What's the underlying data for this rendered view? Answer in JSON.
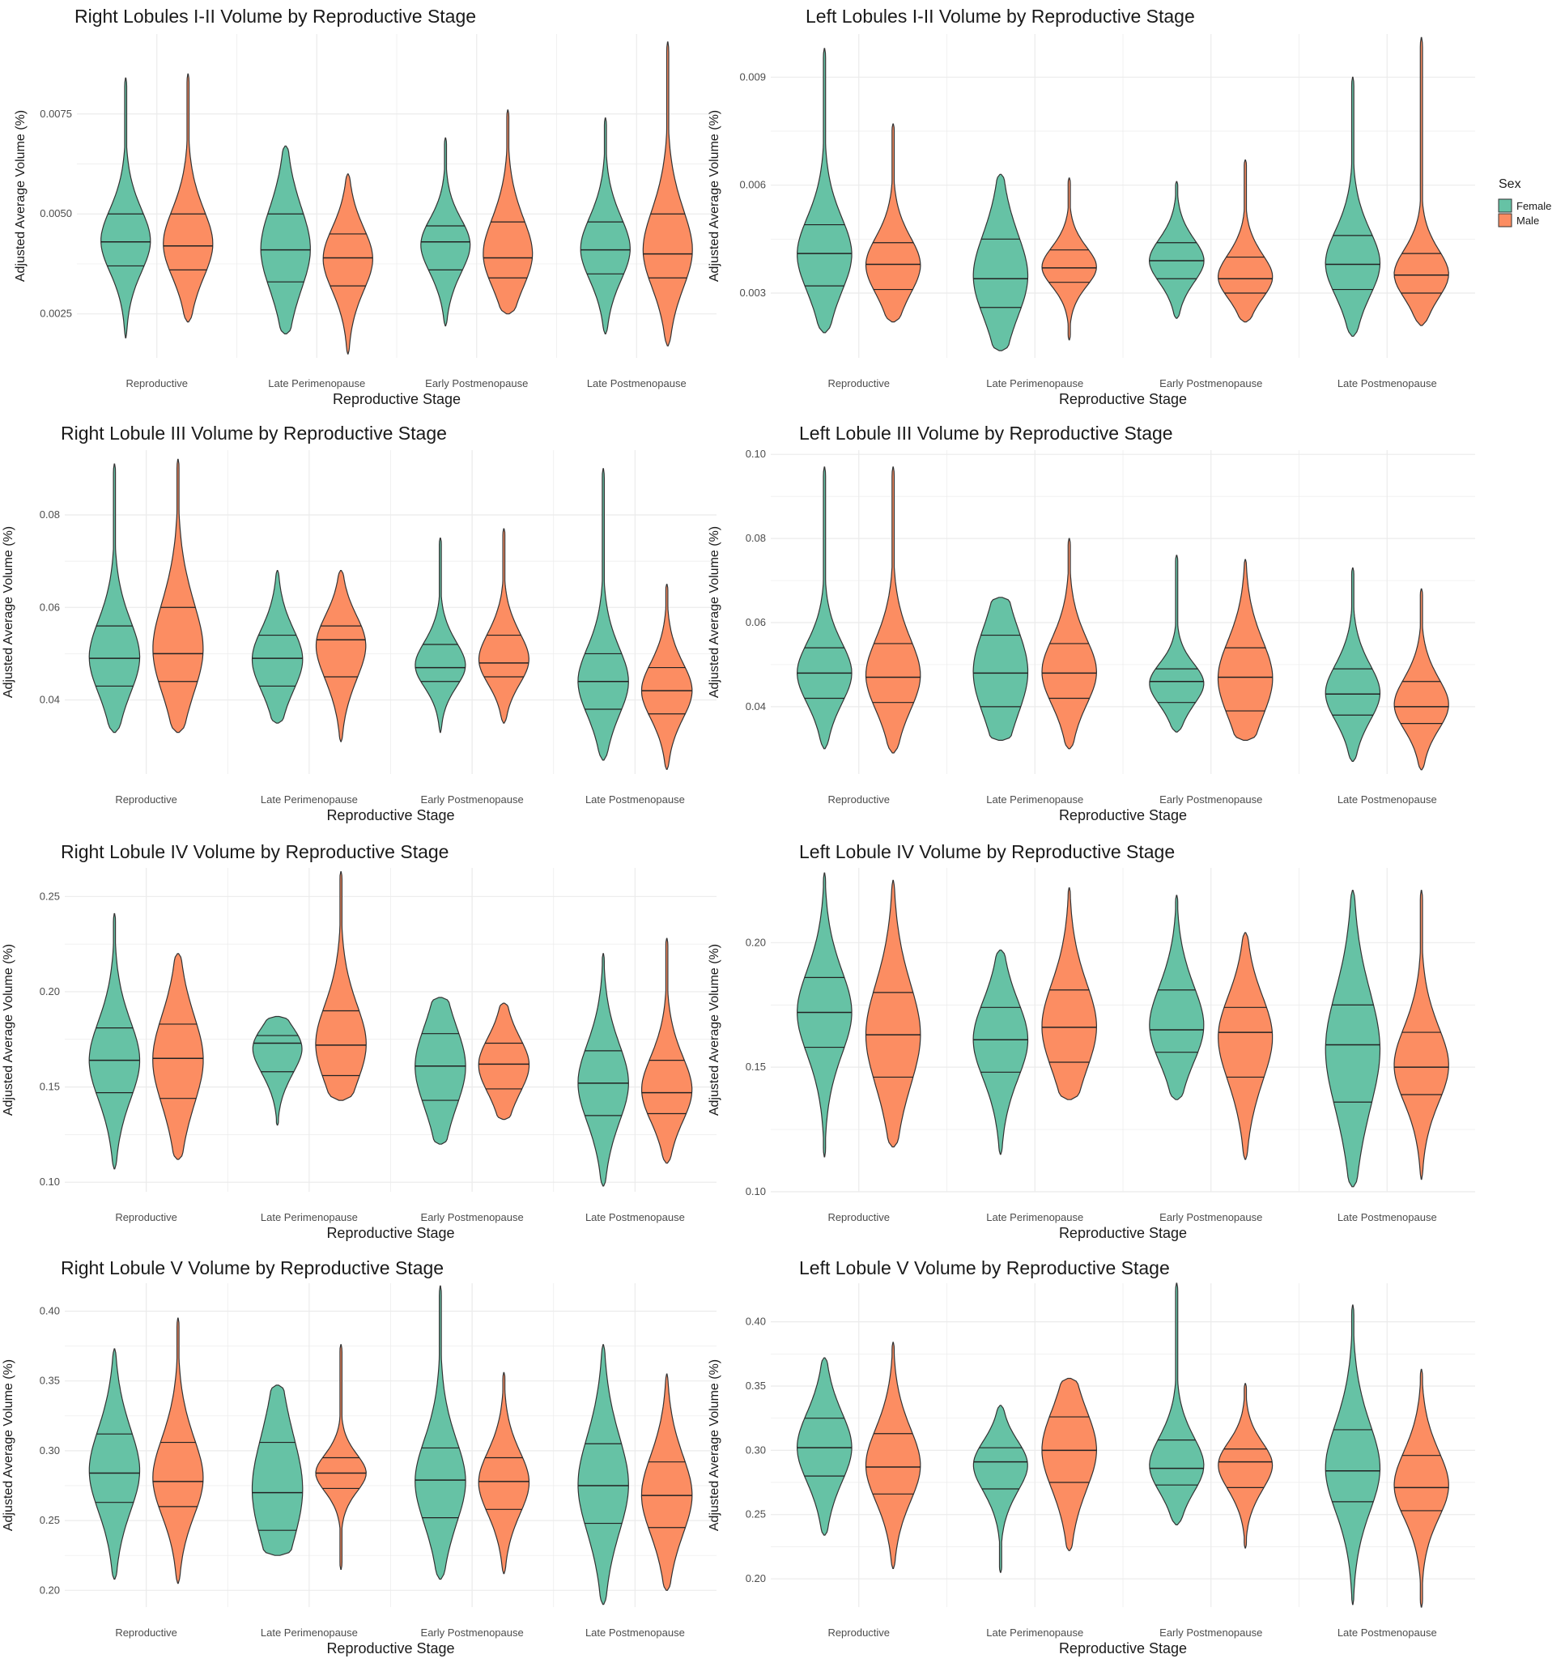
{
  "colors": {
    "female": "#66c2a5",
    "male": "#fc8d62",
    "outline": "#333333",
    "grid": "#ebebeb"
  },
  "legend": {
    "title": "Sex",
    "items": [
      "Female",
      "Male"
    ],
    "placement": "right"
  },
  "chart_data": [
    {
      "type": "violin",
      "title": "Right Lobules I-II Volume by Reproductive Stage",
      "xlabel": "Reproductive Stage",
      "ylabel": "Adjusted Average Volume (%)",
      "categories": [
        "Reproductive",
        "Late Perimenopause",
        "Early Postmenopause",
        "Late Postmenopause"
      ],
      "ylim": [
        0.0014,
        0.0095
      ],
      "yticks": [
        0.0025,
        0.005,
        0.0075
      ],
      "ytick_labels": [
        "0.0025",
        "0.0050",
        "0.0075"
      ],
      "grid": true,
      "series": [
        {
          "name": "Female",
          "groups": [
            {
              "min": 0.0019,
              "max": 0.0084,
              "q1": 0.0037,
              "median": 0.0043,
              "q3": 0.005
            },
            {
              "min": 0.002,
              "max": 0.0067,
              "q1": 0.0033,
              "median": 0.0041,
              "q3": 0.005
            },
            {
              "min": 0.0022,
              "max": 0.0069,
              "q1": 0.0036,
              "median": 0.0043,
              "q3": 0.0047
            },
            {
              "min": 0.002,
              "max": 0.0074,
              "q1": 0.0035,
              "median": 0.0041,
              "q3": 0.0048
            }
          ]
        },
        {
          "name": "Male",
          "groups": [
            {
              "min": 0.0023,
              "max": 0.0085,
              "q1": 0.0036,
              "median": 0.0042,
              "q3": 0.005
            },
            {
              "min": 0.0015,
              "max": 0.006,
              "q1": 0.0032,
              "median": 0.0039,
              "q3": 0.0045
            },
            {
              "min": 0.0025,
              "max": 0.0076,
              "q1": 0.0034,
              "median": 0.0039,
              "q3": 0.0048
            },
            {
              "min": 0.0017,
              "max": 0.0093,
              "q1": 0.0034,
              "median": 0.004,
              "q3": 0.005
            }
          ]
        }
      ]
    },
    {
      "type": "violin",
      "title": "Left Lobules I-II Volume by Reproductive Stage",
      "xlabel": "Reproductive Stage",
      "ylabel": "Adjusted Average Volume (%)",
      "categories": [
        "Reproductive",
        "Late Perimenopause",
        "Early Postmenopause",
        "Late Postmenopause"
      ],
      "ylim": [
        0.0012,
        0.0102
      ],
      "yticks": [
        0.003,
        0.006,
        0.009
      ],
      "ytick_labels": [
        "0.003",
        "0.006",
        "0.009"
      ],
      "grid": true,
      "series": [
        {
          "name": "Female",
          "groups": [
            {
              "min": 0.0019,
              "max": 0.0098,
              "q1": 0.0032,
              "median": 0.0041,
              "q3": 0.0049
            },
            {
              "min": 0.0014,
              "max": 0.0063,
              "q1": 0.0026,
              "median": 0.0034,
              "q3": 0.0045
            },
            {
              "min": 0.0023,
              "max": 0.0061,
              "q1": 0.0034,
              "median": 0.0039,
              "q3": 0.0044
            },
            {
              "min": 0.0018,
              "max": 0.009,
              "q1": 0.0031,
              "median": 0.0038,
              "q3": 0.0046
            }
          ]
        },
        {
          "name": "Male",
          "groups": [
            {
              "min": 0.0022,
              "max": 0.0077,
              "q1": 0.0031,
              "median": 0.0038,
              "q3": 0.0044
            },
            {
              "min": 0.0017,
              "max": 0.0062,
              "q1": 0.0033,
              "median": 0.0037,
              "q3": 0.0042
            },
            {
              "min": 0.0022,
              "max": 0.0067,
              "q1": 0.003,
              "median": 0.0034,
              "q3": 0.004
            },
            {
              "min": 0.0021,
              "max": 0.0101,
              "q1": 0.003,
              "median": 0.0035,
              "q3": 0.0041
            }
          ]
        }
      ]
    },
    {
      "type": "violin",
      "title": "Right Lobule III Volume by Reproductive Stage",
      "xlabel": "Reproductive Stage",
      "ylabel": "Adjusted Average Volume (%)",
      "categories": [
        "Reproductive",
        "Late Perimenopause",
        "Early Postmenopause",
        "Late Postmenopause"
      ],
      "ylim": [
        0.024,
        0.094
      ],
      "yticks": [
        0.04,
        0.06,
        0.08
      ],
      "ytick_labels": [
        "0.04",
        "0.06",
        "0.08"
      ],
      "grid": true,
      "series": [
        {
          "name": "Female",
          "groups": [
            {
              "min": 0.033,
              "max": 0.091,
              "q1": 0.043,
              "median": 0.049,
              "q3": 0.056
            },
            {
              "min": 0.035,
              "max": 0.068,
              "q1": 0.043,
              "median": 0.049,
              "q3": 0.054
            },
            {
              "min": 0.033,
              "max": 0.075,
              "q1": 0.044,
              "median": 0.047,
              "q3": 0.052
            },
            {
              "min": 0.027,
              "max": 0.09,
              "q1": 0.038,
              "median": 0.044,
              "q3": 0.05
            }
          ]
        },
        {
          "name": "Male",
          "groups": [
            {
              "min": 0.033,
              "max": 0.092,
              "q1": 0.044,
              "median": 0.05,
              "q3": 0.06
            },
            {
              "min": 0.031,
              "max": 0.068,
              "q1": 0.045,
              "median": 0.053,
              "q3": 0.056
            },
            {
              "min": 0.035,
              "max": 0.077,
              "q1": 0.045,
              "median": 0.048,
              "q3": 0.054
            },
            {
              "min": 0.025,
              "max": 0.065,
              "q1": 0.037,
              "median": 0.042,
              "q3": 0.047
            }
          ]
        }
      ]
    },
    {
      "type": "violin",
      "title": "Left Lobule III Volume by Reproductive Stage",
      "xlabel": "Reproductive Stage",
      "ylabel": "Adjusted Average Volume (%)",
      "categories": [
        "Reproductive",
        "Late Perimenopause",
        "Early Postmenopause",
        "Late Postmenopause"
      ],
      "ylim": [
        0.024,
        0.101
      ],
      "yticks": [
        0.04,
        0.06,
        0.08,
        0.1
      ],
      "ytick_labels": [
        "0.04",
        "0.06",
        "0.08",
        "0.10"
      ],
      "grid": true,
      "series": [
        {
          "name": "Female",
          "groups": [
            {
              "min": 0.03,
              "max": 0.097,
              "q1": 0.042,
              "median": 0.048,
              "q3": 0.054
            },
            {
              "min": 0.032,
              "max": 0.066,
              "q1": 0.04,
              "median": 0.048,
              "q3": 0.057
            },
            {
              "min": 0.034,
              "max": 0.076,
              "q1": 0.041,
              "median": 0.046,
              "q3": 0.049
            },
            {
              "min": 0.027,
              "max": 0.073,
              "q1": 0.038,
              "median": 0.043,
              "q3": 0.049
            }
          ]
        },
        {
          "name": "Male",
          "groups": [
            {
              "min": 0.029,
              "max": 0.097,
              "q1": 0.041,
              "median": 0.047,
              "q3": 0.055
            },
            {
              "min": 0.03,
              "max": 0.08,
              "q1": 0.042,
              "median": 0.048,
              "q3": 0.055
            },
            {
              "min": 0.032,
              "max": 0.075,
              "q1": 0.039,
              "median": 0.047,
              "q3": 0.054
            },
            {
              "min": 0.025,
              "max": 0.068,
              "q1": 0.036,
              "median": 0.04,
              "q3": 0.046
            }
          ]
        }
      ]
    },
    {
      "type": "violin",
      "title": "Right Lobule IV Volume by Reproductive Stage",
      "xlabel": "Reproductive Stage",
      "ylabel": "Adjusted Average Volume (%)",
      "categories": [
        "Reproductive",
        "Late Perimenopause",
        "Early Postmenopause",
        "Late Postmenopause"
      ],
      "ylim": [
        0.095,
        0.265
      ],
      "yticks": [
        0.1,
        0.15,
        0.2,
        0.25
      ],
      "ytick_labels": [
        "0.10",
        "0.15",
        "0.20",
        "0.25"
      ],
      "grid": true,
      "series": [
        {
          "name": "Female",
          "groups": [
            {
              "min": 0.107,
              "max": 0.241,
              "q1": 0.147,
              "median": 0.164,
              "q3": 0.181
            },
            {
              "min": 0.13,
              "max": 0.187,
              "q1": 0.158,
              "median": 0.173,
              "q3": 0.177
            },
            {
              "min": 0.12,
              "max": 0.197,
              "q1": 0.143,
              "median": 0.161,
              "q3": 0.178
            },
            {
              "min": 0.098,
              "max": 0.22,
              "q1": 0.135,
              "median": 0.152,
              "q3": 0.169
            }
          ]
        },
        {
          "name": "Male",
          "groups": [
            {
              "min": 0.112,
              "max": 0.22,
              "q1": 0.144,
              "median": 0.165,
              "q3": 0.183
            },
            {
              "min": 0.143,
              "max": 0.263,
              "q1": 0.156,
              "median": 0.172,
              "q3": 0.19
            },
            {
              "min": 0.133,
              "max": 0.194,
              "q1": 0.149,
              "median": 0.162,
              "q3": 0.173
            },
            {
              "min": 0.11,
              "max": 0.228,
              "q1": 0.136,
              "median": 0.147,
              "q3": 0.164
            }
          ]
        }
      ]
    },
    {
      "type": "violin",
      "title": "Left Lobule IV Volume by Reproductive Stage",
      "xlabel": "Reproductive Stage",
      "ylabel": "Adjusted Average Volume (%)",
      "categories": [
        "Reproductive",
        "Late Perimenopause",
        "Early Postmenopause",
        "Late Postmenopause"
      ],
      "ylim": [
        0.1,
        0.23
      ],
      "yticks": [
        0.1,
        0.15,
        0.2
      ],
      "ytick_labels": [
        "0.10",
        "0.15",
        "0.20"
      ],
      "grid": true,
      "series": [
        {
          "name": "Female",
          "groups": [
            {
              "min": 0.114,
              "max": 0.228,
              "q1": 0.158,
              "median": 0.172,
              "q3": 0.186
            },
            {
              "min": 0.115,
              "max": 0.197,
              "q1": 0.148,
              "median": 0.161,
              "q3": 0.174
            },
            {
              "min": 0.137,
              "max": 0.219,
              "q1": 0.156,
              "median": 0.165,
              "q3": 0.181
            },
            {
              "min": 0.102,
              "max": 0.221,
              "q1": 0.136,
              "median": 0.159,
              "q3": 0.175
            }
          ]
        },
        {
          "name": "Male",
          "groups": [
            {
              "min": 0.118,
              "max": 0.225,
              "q1": 0.146,
              "median": 0.163,
              "q3": 0.18
            },
            {
              "min": 0.137,
              "max": 0.222,
              "q1": 0.152,
              "median": 0.166,
              "q3": 0.181
            },
            {
              "min": 0.113,
              "max": 0.204,
              "q1": 0.146,
              "median": 0.164,
              "q3": 0.174
            },
            {
              "min": 0.105,
              "max": 0.221,
              "q1": 0.139,
              "median": 0.15,
              "q3": 0.164
            }
          ]
        }
      ]
    },
    {
      "type": "violin",
      "title": "Right Lobule V Volume by Reproductive Stage",
      "xlabel": "Reproductive Stage",
      "ylabel": "Adjusted Average Volume (%)",
      "categories": [
        "Reproductive",
        "Late Perimenopause",
        "Early Postmenopause",
        "Late Postmenopause"
      ],
      "ylim": [
        0.188,
        0.42
      ],
      "yticks": [
        0.2,
        0.25,
        0.3,
        0.35,
        0.4
      ],
      "ytick_labels": [
        "0.20",
        "0.25",
        "0.30",
        "0.35",
        "0.40"
      ],
      "grid": true,
      "series": [
        {
          "name": "Female",
          "groups": [
            {
              "min": 0.208,
              "max": 0.373,
              "q1": 0.263,
              "median": 0.284,
              "q3": 0.312
            },
            {
              "min": 0.225,
              "max": 0.347,
              "q1": 0.243,
              "median": 0.27,
              "q3": 0.306
            },
            {
              "min": 0.208,
              "max": 0.418,
              "q1": 0.252,
              "median": 0.279,
              "q3": 0.302
            },
            {
              "min": 0.19,
              "max": 0.376,
              "q1": 0.248,
              "median": 0.275,
              "q3": 0.305
            }
          ]
        },
        {
          "name": "Male",
          "groups": [
            {
              "min": 0.205,
              "max": 0.395,
              "q1": 0.26,
              "median": 0.278,
              "q3": 0.306
            },
            {
              "min": 0.215,
              "max": 0.376,
              "q1": 0.273,
              "median": 0.284,
              "q3": 0.295
            },
            {
              "min": 0.212,
              "max": 0.356,
              "q1": 0.258,
              "median": 0.278,
              "q3": 0.295
            },
            {
              "min": 0.2,
              "max": 0.355,
              "q1": 0.245,
              "median": 0.268,
              "q3": 0.292
            }
          ]
        }
      ]
    },
    {
      "type": "violin",
      "title": "Left Lobule V Volume by Reproductive Stage",
      "xlabel": "Reproductive Stage",
      "ylabel": "Adjusted Average Volume (%)",
      "categories": [
        "Reproductive",
        "Late Perimenopause",
        "Early Postmenopause",
        "Late Postmenopause"
      ],
      "ylim": [
        0.178,
        0.43
      ],
      "yticks": [
        0.2,
        0.25,
        0.3,
        0.35,
        0.4
      ],
      "ytick_labels": [
        "0.20",
        "0.25",
        "0.30",
        "0.35",
        "0.40"
      ],
      "grid": true,
      "series": [
        {
          "name": "Female",
          "groups": [
            {
              "min": 0.234,
              "max": 0.372,
              "q1": 0.28,
              "median": 0.302,
              "q3": 0.325
            },
            {
              "min": 0.205,
              "max": 0.335,
              "q1": 0.27,
              "median": 0.291,
              "q3": 0.302
            },
            {
              "min": 0.242,
              "max": 0.43,
              "q1": 0.273,
              "median": 0.286,
              "q3": 0.308
            },
            {
              "min": 0.18,
              "max": 0.413,
              "q1": 0.26,
              "median": 0.284,
              "q3": 0.316
            }
          ]
        },
        {
          "name": "Male",
          "groups": [
            {
              "min": 0.208,
              "max": 0.384,
              "q1": 0.266,
              "median": 0.287,
              "q3": 0.313
            },
            {
              "min": 0.222,
              "max": 0.356,
              "q1": 0.275,
              "median": 0.3,
              "q3": 0.326
            },
            {
              "min": 0.224,
              "max": 0.352,
              "q1": 0.271,
              "median": 0.291,
              "q3": 0.301
            },
            {
              "min": 0.178,
              "max": 0.363,
              "q1": 0.253,
              "median": 0.271,
              "q3": 0.296
            }
          ]
        }
      ]
    }
  ]
}
